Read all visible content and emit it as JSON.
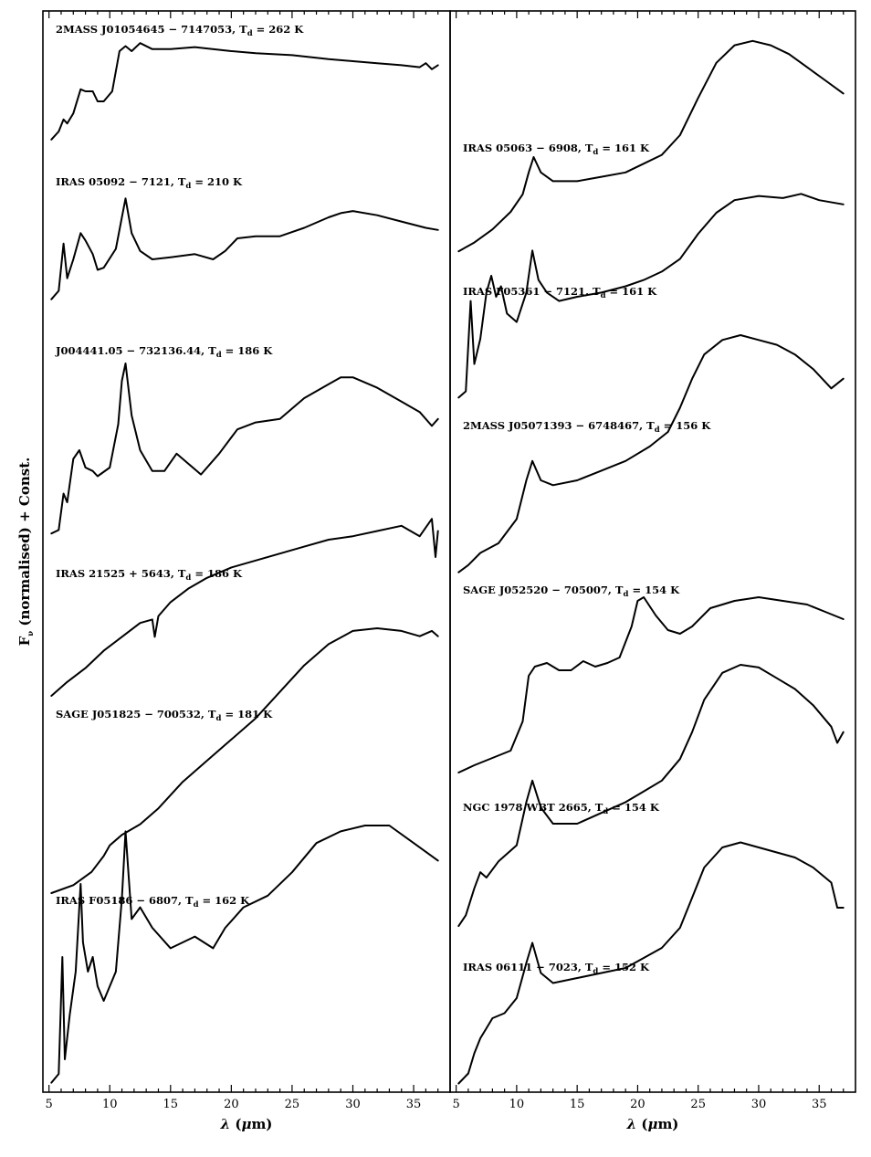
{
  "chart_data": {
    "type": "line",
    "ylabel": "F",
    "ylabel_sub": "ν",
    "ylabel_rest": " (normalised) + Const.",
    "xlabel_symbol": "λ",
    "xlabel_open": " (",
    "xlabel_unit": "μ",
    "xlabel_close": "m)",
    "xlim": [
      4.5,
      38
    ],
    "xticks": [
      5,
      10,
      15,
      20,
      25,
      30,
      35
    ],
    "panels": [
      {
        "name": "left",
        "series": [
          {
            "source": "2MASS J01054645 − 7147053",
            "td": "262 K",
            "x": [
              5.2,
              5.8,
              6.2,
              6.5,
              7.0,
              7.6,
              8.0,
              8.6,
              9.0,
              9.5,
              10.2,
              10.8,
              11.3,
              11.8,
              12.5,
              13.5,
              15.0,
              17.0,
              20.0,
              22.0,
              25.0,
              28.0,
              30.0,
              32.0,
              34.0,
              35.5,
              36.0,
              36.5,
              37.0
            ],
            "y": [
              0.02,
              0.1,
              0.22,
              0.18,
              0.28,
              0.52,
              0.5,
              0.5,
              0.4,
              0.4,
              0.5,
              0.9,
              0.95,
              0.9,
              0.98,
              0.92,
              0.92,
              0.94,
              0.9,
              0.88,
              0.86,
              0.82,
              0.8,
              0.78,
              0.76,
              0.74,
              0.78,
              0.72,
              0.76
            ]
          },
          {
            "source": "IRAS 05092 − 7121",
            "td": "210 K",
            "x": [
              5.2,
              5.8,
              6.2,
              6.5,
              7.0,
              7.6,
              8.0,
              8.6,
              9.0,
              9.5,
              10.5,
              11.0,
              11.3,
              11.8,
              12.5,
              13.5,
              15.0,
              17.0,
              18.5,
              19.5,
              20.5,
              22.0,
              24.0,
              26.0,
              28.0,
              29.0,
              30.0,
              32.0,
              34.0,
              36.0,
              37.0
            ],
            "y": [
              0.02,
              0.1,
              0.55,
              0.22,
              0.4,
              0.65,
              0.58,
              0.45,
              0.3,
              0.32,
              0.5,
              0.8,
              0.98,
              0.65,
              0.48,
              0.4,
              0.42,
              0.45,
              0.4,
              0.48,
              0.6,
              0.62,
              0.62,
              0.7,
              0.8,
              0.84,
              0.86,
              0.82,
              0.76,
              0.7,
              0.68
            ]
          },
          {
            "source": "J004441.05 − 732136.44",
            "td": "186 K",
            "x": [
              5.2,
              5.8,
              6.2,
              6.5,
              7.0,
              7.5,
              8.0,
              8.6,
              9.0,
              10.0,
              10.7,
              11.0,
              11.3,
              11.8,
              12.5,
              13.5,
              14.5,
              15.5,
              16.5,
              17.5,
              19.0,
              20.5,
              22.0,
              24.0,
              26.0,
              28.0,
              29.0,
              30.0,
              32.0,
              34.0,
              35.5,
              36.5,
              37.0
            ],
            "y": [
              0.02,
              0.04,
              0.25,
              0.2,
              0.45,
              0.5,
              0.4,
              0.38,
              0.35,
              0.4,
              0.65,
              0.9,
              1.0,
              0.7,
              0.5,
              0.38,
              0.38,
              0.48,
              0.42,
              0.36,
              0.48,
              0.62,
              0.66,
              0.68,
              0.8,
              0.88,
              0.92,
              0.92,
              0.86,
              0.78,
              0.72,
              0.64,
              0.68
            ]
          },
          {
            "source": "IRAS 21525 + 5643",
            "td": "186 K",
            "x": [
              5.2,
              6.5,
              8.0,
              9.5,
              11.0,
              12.5,
              13.5,
              13.7,
              14.0,
              15.0,
              16.5,
              18.0,
              20.0,
              22.0,
              24.0,
              26.0,
              28.0,
              30.0,
              32.0,
              34.0,
              35.5,
              36.5,
              36.8,
              37.0
            ],
            "y": [
              0.0,
              0.08,
              0.16,
              0.26,
              0.34,
              0.42,
              0.44,
              0.34,
              0.46,
              0.54,
              0.62,
              0.68,
              0.74,
              0.78,
              0.82,
              0.86,
              0.9,
              0.92,
              0.95,
              0.98,
              0.92,
              1.02,
              0.8,
              0.95
            ]
          },
          {
            "source": "SAGE J051825 − 700532",
            "td": "181 K",
            "x": [
              5.2,
              7.0,
              8.5,
              9.5,
              10.0,
              11.0,
              12.5,
              14.0,
              16.0,
              18.0,
              20.0,
              22.0,
              24.0,
              26.0,
              28.0,
              30.0,
              32.0,
              34.0,
              35.5,
              36.5,
              37.0
            ],
            "y": [
              0.0,
              0.03,
              0.08,
              0.14,
              0.18,
              0.22,
              0.26,
              0.32,
              0.42,
              0.5,
              0.58,
              0.66,
              0.76,
              0.86,
              0.94,
              0.99,
              1.0,
              0.99,
              0.97,
              0.99,
              0.97
            ]
          },
          {
            "source": "IRAS F05186 − 6807",
            "td": "162 K",
            "x": [
              5.2,
              5.8,
              6.1,
              6.3,
              6.7,
              7.2,
              7.6,
              7.8,
              8.2,
              8.6,
              9.0,
              9.5,
              10.5,
              11.0,
              11.3,
              11.8,
              12.5,
              13.5,
              15.0,
              17.0,
              18.5,
              19.5,
              21.0,
              23.0,
              25.0,
              27.0,
              29.0,
              31.0,
              33.0,
              35.0,
              37.0
            ],
            "y": [
              0.02,
              0.05,
              0.45,
              0.1,
              0.25,
              0.4,
              0.7,
              0.5,
              0.4,
              0.45,
              0.35,
              0.3,
              0.4,
              0.65,
              0.88,
              0.58,
              0.62,
              0.55,
              0.48,
              0.52,
              0.48,
              0.55,
              0.62,
              0.66,
              0.74,
              0.84,
              0.88,
              0.9,
              0.9,
              0.84,
              0.78
            ]
          }
        ]
      },
      {
        "name": "right",
        "series": [
          {
            "source": "IRAS 05063 − 6908",
            "td": "161 K",
            "x": [
              5.2,
              6.5,
              8.0,
              9.5,
              10.5,
              11.0,
              11.4,
              12.0,
              13.0,
              15.0,
              17.0,
              19.0,
              20.5,
              22.0,
              23.5,
              25.0,
              26.5,
              28.0,
              29.5,
              31.0,
              32.5,
              34.0,
              35.5,
              37.0
            ],
            "y": [
              0.02,
              0.06,
              0.12,
              0.2,
              0.28,
              0.38,
              0.45,
              0.38,
              0.34,
              0.34,
              0.36,
              0.38,
              0.42,
              0.46,
              0.55,
              0.72,
              0.88,
              0.96,
              0.98,
              0.96,
              0.92,
              0.86,
              0.8,
              0.74
            ]
          },
          {
            "source": "IRAS F05361 − 7121",
            "td": "161 K",
            "x": [
              5.2,
              5.8,
              6.2,
              6.5,
              7.0,
              7.5,
              7.9,
              8.3,
              8.7,
              9.2,
              10.0,
              10.8,
              11.3,
              11.8,
              12.5,
              13.5,
              15.0,
              17.0,
              19.0,
              20.5,
              22.0,
              23.5,
              25.0,
              26.5,
              28.0,
              30.0,
              32.0,
              33.5,
              35.0,
              37.0
            ],
            "y": [
              0.02,
              0.05,
              0.48,
              0.18,
              0.3,
              0.52,
              0.6,
              0.5,
              0.55,
              0.42,
              0.38,
              0.52,
              0.72,
              0.58,
              0.52,
              0.48,
              0.5,
              0.52,
              0.55,
              0.58,
              0.62,
              0.68,
              0.8,
              0.9,
              0.96,
              0.98,
              0.97,
              0.99,
              0.96,
              0.94
            ]
          },
          {
            "source": "2MASS J05071393 − 6748467",
            "td": "156 K",
            "x": [
              5.2,
              6.0,
              7.0,
              8.5,
              10.0,
              10.8,
              11.3,
              12.0,
              13.0,
              15.0,
              17.0,
              19.0,
              21.0,
              22.5,
              23.5,
              24.5,
              25.5,
              27.0,
              28.5,
              30.0,
              31.5,
              33.0,
              34.5,
              36.0,
              37.0
            ],
            "y": [
              0.02,
              0.05,
              0.1,
              0.14,
              0.24,
              0.4,
              0.48,
              0.4,
              0.38,
              0.4,
              0.44,
              0.48,
              0.54,
              0.6,
              0.7,
              0.82,
              0.92,
              0.98,
              1.0,
              0.98,
              0.96,
              0.92,
              0.86,
              0.78,
              0.82
            ]
          },
          {
            "source": "SAGE J052520 − 705007",
            "td": "154 K",
            "x": [
              5.2,
              6.5,
              8.0,
              9.5,
              10.5,
              11.0,
              11.5,
              12.5,
              13.5,
              14.5,
              15.5,
              16.5,
              17.5,
              18.5,
              19.5,
              20.0,
              20.5,
              21.5,
              22.5,
              23.5,
              24.5,
              26.0,
              28.0,
              30.0,
              32.0,
              34.0,
              35.5,
              37.0
            ],
            "y": [
              0.02,
              0.06,
              0.1,
              0.14,
              0.3,
              0.55,
              0.6,
              0.62,
              0.58,
              0.58,
              0.63,
              0.6,
              0.62,
              0.65,
              0.82,
              0.96,
              0.98,
              0.88,
              0.8,
              0.78,
              0.82,
              0.92,
              0.96,
              0.98,
              0.96,
              0.94,
              0.9,
              0.86
            ]
          },
          {
            "source": "NGC 1978 WBT 2665",
            "td": "154 K",
            "x": [
              5.2,
              5.8,
              6.5,
              7.0,
              7.5,
              8.5,
              10.0,
              10.8,
              11.3,
              12.0,
              13.0,
              15.0,
              17.0,
              19.0,
              20.5,
              22.0,
              23.5,
              24.5,
              25.5,
              27.0,
              28.5,
              30.0,
              31.5,
              33.0,
              34.5,
              36.0,
              36.5,
              37.0
            ],
            "y": [
              0.02,
              0.06,
              0.16,
              0.22,
              0.2,
              0.26,
              0.32,
              0.48,
              0.56,
              0.46,
              0.4,
              0.4,
              0.44,
              0.48,
              0.52,
              0.56,
              0.64,
              0.74,
              0.86,
              0.96,
              0.99,
              0.98,
              0.94,
              0.9,
              0.84,
              0.76,
              0.7,
              0.74
            ]
          },
          {
            "source": "IRAS 06111 − 7023",
            "td": "152 K",
            "x": [
              5.2,
              6.0,
              6.5,
              7.0,
              7.5,
              8.0,
              9.0,
              10.0,
              10.8,
              11.3,
              12.0,
              13.0,
              15.0,
              17.0,
              19.0,
              20.5,
              22.0,
              23.5,
              24.5,
              25.5,
              27.0,
              28.5,
              30.0,
              31.5,
              33.0,
              34.5,
              35.5,
              36.0,
              36.5,
              37.0
            ],
            "y": [
              0.02,
              0.06,
              0.14,
              0.2,
              0.24,
              0.28,
              0.3,
              0.36,
              0.5,
              0.58,
              0.46,
              0.42,
              0.44,
              0.46,
              0.48,
              0.52,
              0.56,
              0.64,
              0.76,
              0.88,
              0.96,
              0.98,
              0.96,
              0.94,
              0.92,
              0.88,
              0.84,
              0.82,
              0.72,
              0.72
            ]
          }
        ]
      }
    ]
  }
}
